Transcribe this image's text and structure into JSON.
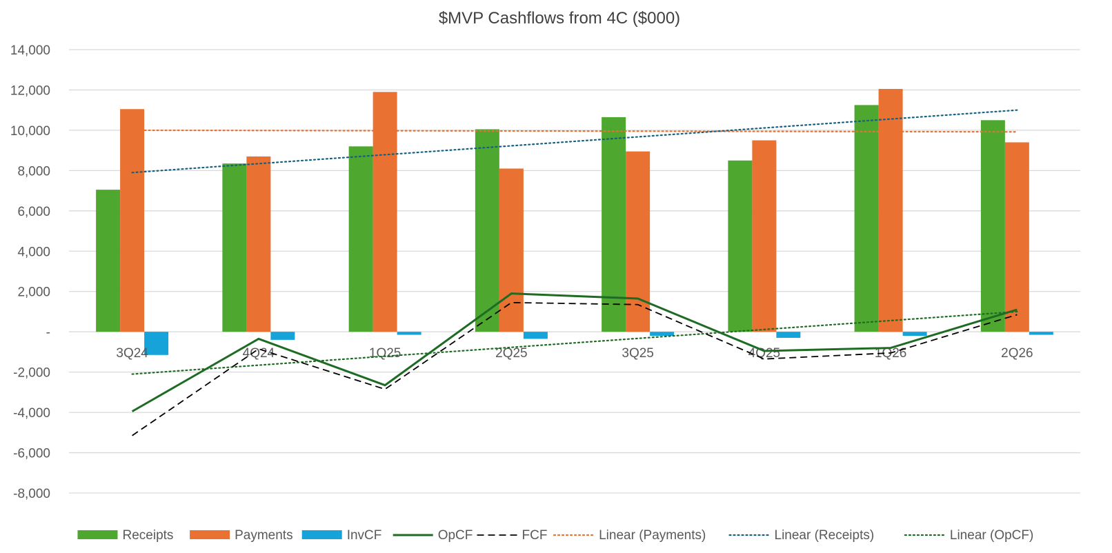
{
  "chart_data": {
    "type": "bar",
    "title": "$MVP Cashflows from 4C ($000)",
    "xlabel": "",
    "ylabel": "",
    "categories": [
      "3Q24",
      "4Q24",
      "1Q25",
      "2Q25",
      "3Q25",
      "4Q25",
      "1Q26",
      "2Q26"
    ],
    "ylim": [
      -8000,
      14000
    ],
    "yticks": [
      14000,
      12000,
      10000,
      8000,
      6000,
      4000,
      2000,
      0,
      -2000,
      -4000,
      -6000,
      -8000
    ],
    "ytick_labels": [
      "14,000",
      "12,000",
      "10,000",
      "8,000",
      "6,000",
      "4,000",
      "2,000",
      "-",
      "-2,000",
      "-4,000",
      "-6,000",
      "-8,000"
    ],
    "grid": true,
    "legend_position": "bottom",
    "bar_series": [
      {
        "name": "Receipts",
        "color": "#4EA72E",
        "values": [
          7050,
          8350,
          9200,
          10050,
          10650,
          8500,
          11250,
          10500
        ]
      },
      {
        "name": "Payments",
        "color": "#E97132",
        "values": [
          11050,
          8700,
          11900,
          8100,
          8950,
          9500,
          12050,
          9400
        ]
      },
      {
        "name": "InvCF",
        "color": "#16A3DA",
        "values": [
          -1150,
          -400,
          -150,
          -350,
          -200,
          -300,
          -200,
          -150
        ]
      }
    ],
    "line_series": [
      {
        "name": "OpCF",
        "color": "#1E6B24",
        "style": "solid",
        "values": [
          -3950,
          -350,
          -2650,
          1900,
          1650,
          -950,
          -800,
          1100
        ]
      },
      {
        "name": "FCF",
        "color": "#000000",
        "style": "dashed",
        "values": [
          -5150,
          -850,
          -2850,
          1450,
          1350,
          -1350,
          -1050,
          850
        ]
      }
    ],
    "trendlines": [
      {
        "name": "Linear (Payments)",
        "color": "#E97132",
        "start": 10000,
        "end": 9920
      },
      {
        "name": "Linear (Receipts)",
        "color": "#156082",
        "start": 7900,
        "end": 11000
      },
      {
        "name": "Linear (OpCF)",
        "color": "#1E6B24",
        "start": -2100,
        "end": 1000
      }
    ],
    "legend": [
      {
        "label": "Receipts",
        "kind": "bar",
        "color": "#4EA72E"
      },
      {
        "label": "Payments",
        "kind": "bar",
        "color": "#E97132"
      },
      {
        "label": "InvCF",
        "kind": "bar",
        "color": "#16A3DA"
      },
      {
        "label": "OpCF",
        "kind": "solid",
        "color": "#1E6B24"
      },
      {
        "label": "FCF",
        "kind": "dashed",
        "color": "#000000"
      },
      {
        "label": "Linear (Payments)",
        "kind": "dotted",
        "color": "#E97132"
      },
      {
        "label": "Linear (Receipts)",
        "kind": "dotted",
        "color": "#156082"
      },
      {
        "label": "Linear (OpCF)",
        "kind": "dotted",
        "color": "#1E6B24"
      }
    ]
  }
}
